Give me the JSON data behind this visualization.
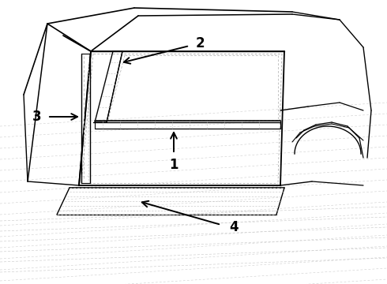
{
  "bg_color": "#ffffff",
  "lc": "#000000",
  "dc": "#aaaaaa",
  "fig_width": 4.9,
  "fig_height": 3.6,
  "dpi": 100
}
